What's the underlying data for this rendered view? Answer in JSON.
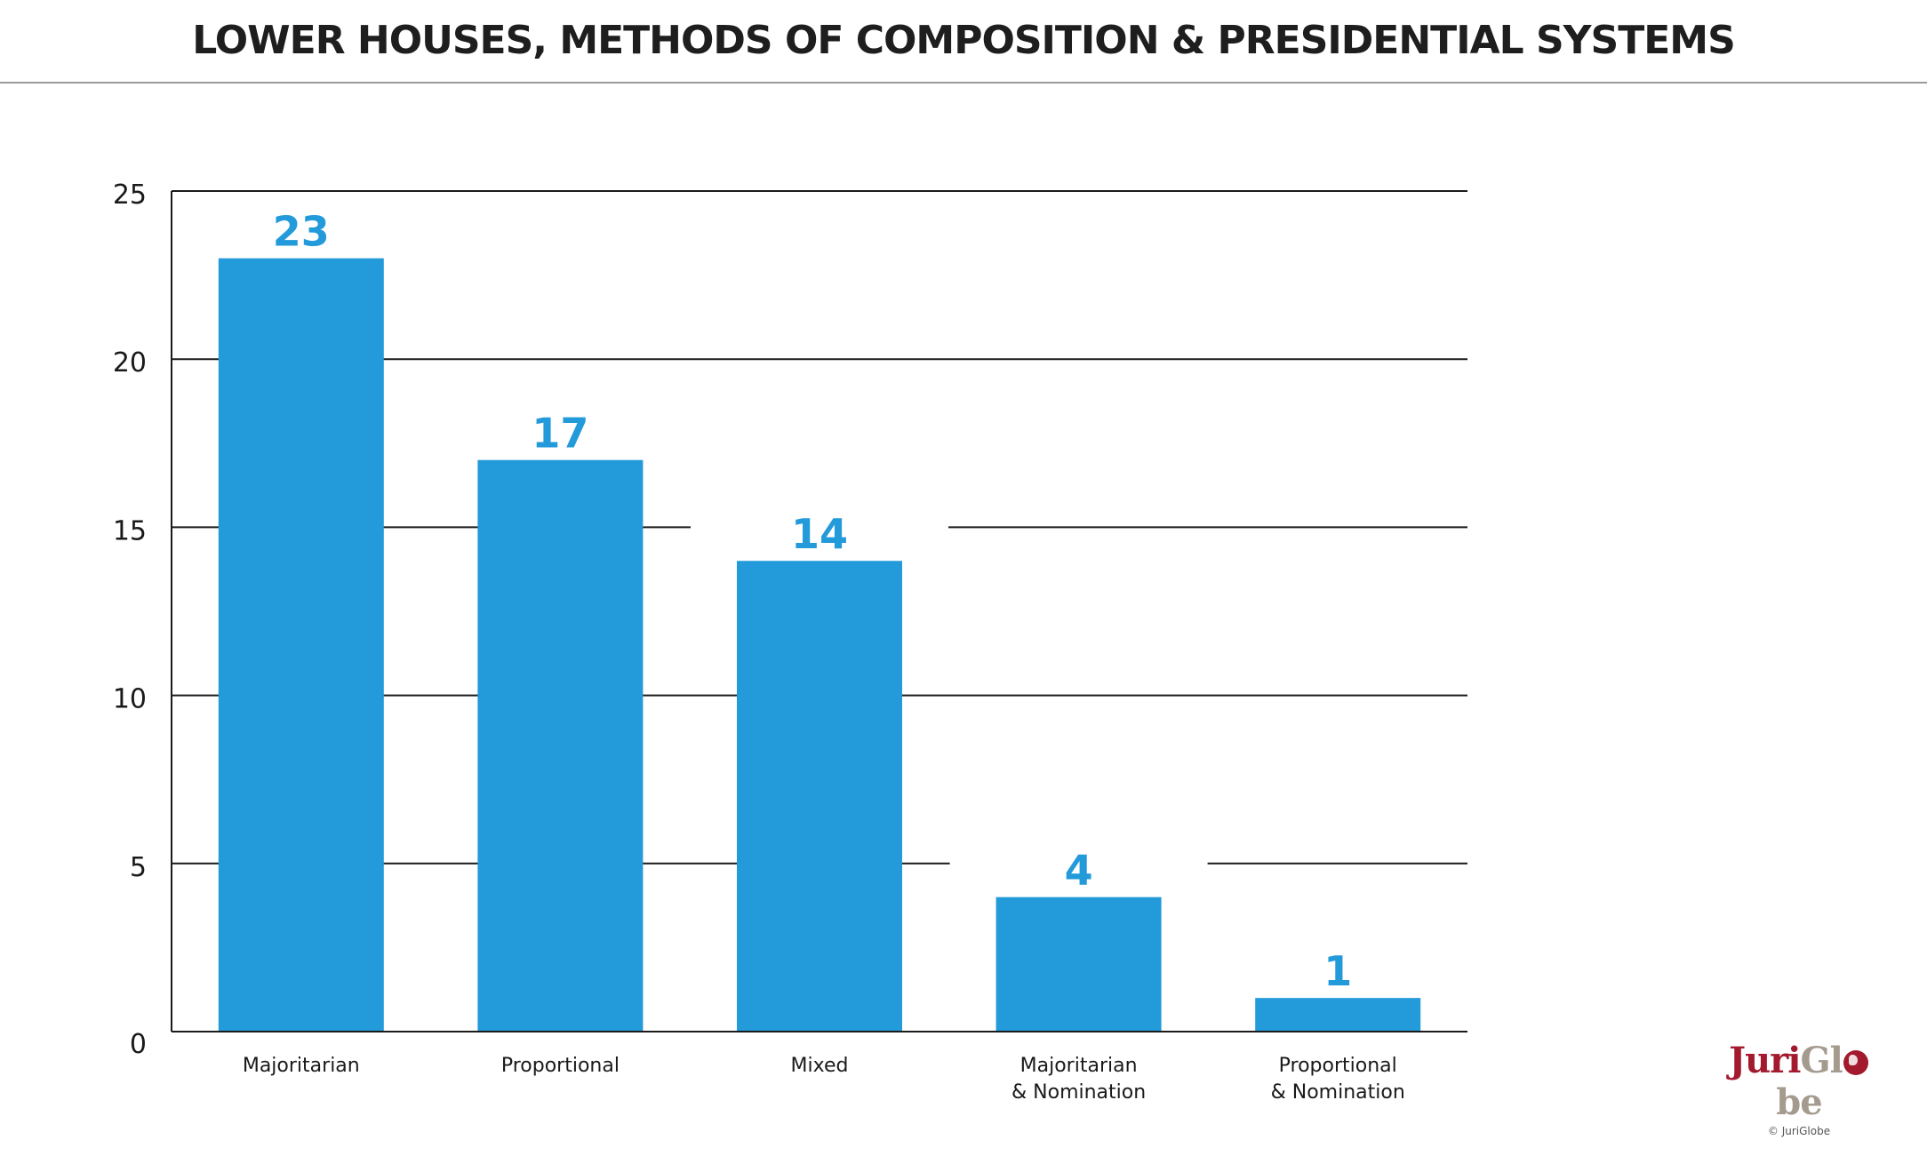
{
  "title": "LOWER HOUSES, METHODS OF COMPOSITION & PRESIDENTIAL SYSTEMS",
  "chart_data": {
    "type": "bar",
    "title": "LOWER HOUSES, METHODS OF COMPOSITION & PRESIDENTIAL SYSTEMS",
    "xlabel": "",
    "ylabel": "",
    "categories": [
      [
        "Majoritarian"
      ],
      [
        "Proportional"
      ],
      [
        "Mixed"
      ],
      [
        "Majoritarian",
        "& Nomination"
      ],
      [
        "Proportional",
        "& Nomination"
      ]
    ],
    "values": [
      23,
      17,
      14,
      4,
      1
    ],
    "ylim": [
      0,
      25
    ],
    "yticks": [
      0,
      5,
      10,
      15,
      20,
      25
    ],
    "grid": true,
    "bar_color": "#239ada",
    "label_color": "#239ada"
  },
  "logo": {
    "part1": "Juri",
    "part2": "Gl",
    "part3": "be",
    "icon": "globe-icon",
    "copyright": "© JuriGlobe"
  }
}
